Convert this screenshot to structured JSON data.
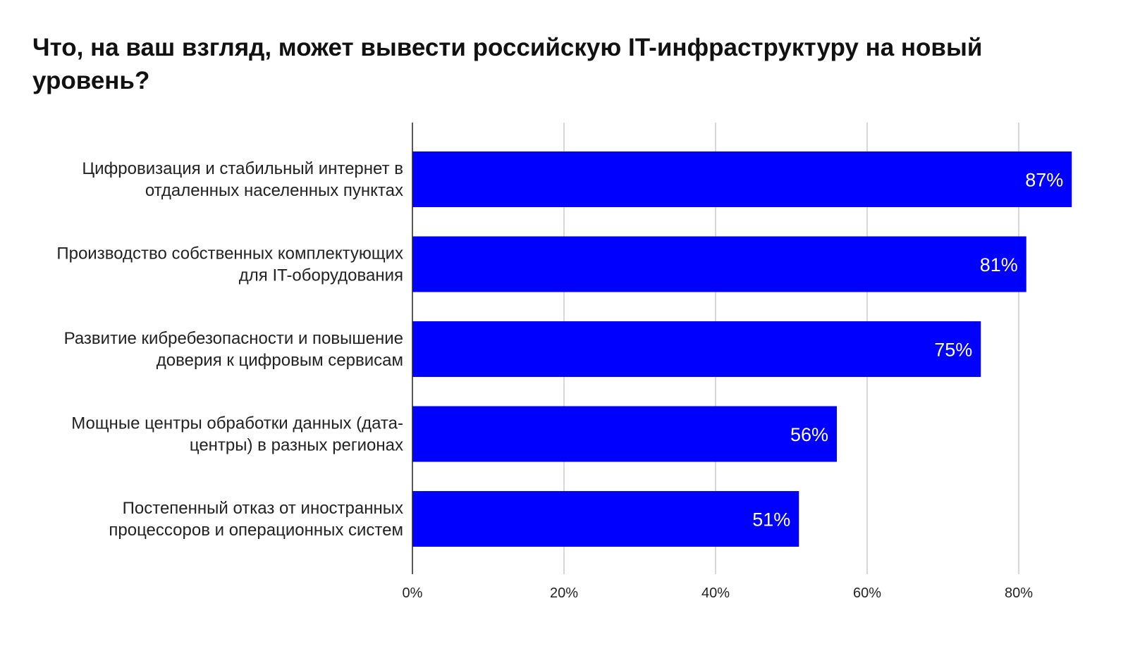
{
  "chart_data": {
    "type": "bar",
    "orientation": "horizontal",
    "title": "Что, на ваш взгляд, может вывести российскую IT-инфраструктуру на новый уровень?",
    "categories": [
      [
        "Цифровизация и стабильный интернет в",
        "отдаленных населенных пунктах"
      ],
      [
        "Производство собственных комплектующих",
        "для IT-оборудования"
      ],
      [
        "Развитие кибребезопасности и повышение",
        "доверия к цифровым сервисам"
      ],
      [
        "Мощные центры обработки данных (дата-",
        "центры) в разных регионах"
      ],
      [
        "Постепенный отказ от иностранных",
        "процессоров и операционных систем"
      ]
    ],
    "values": [
      87,
      81,
      75,
      56,
      51
    ],
    "data_labels": [
      "87%",
      "81%",
      "75%",
      "56%",
      "51%"
    ],
    "xlim": [
      0,
      87
    ],
    "x_ticks": [
      0,
      20,
      40,
      60,
      80
    ],
    "x_tick_labels": [
      "0%",
      "20%",
      "40%",
      "60%",
      "80%"
    ],
    "grid": "vertical",
    "legend": "none",
    "bar_color": "#0000ff",
    "grid_color": "#cccccc",
    "axis_color": "#222222"
  }
}
